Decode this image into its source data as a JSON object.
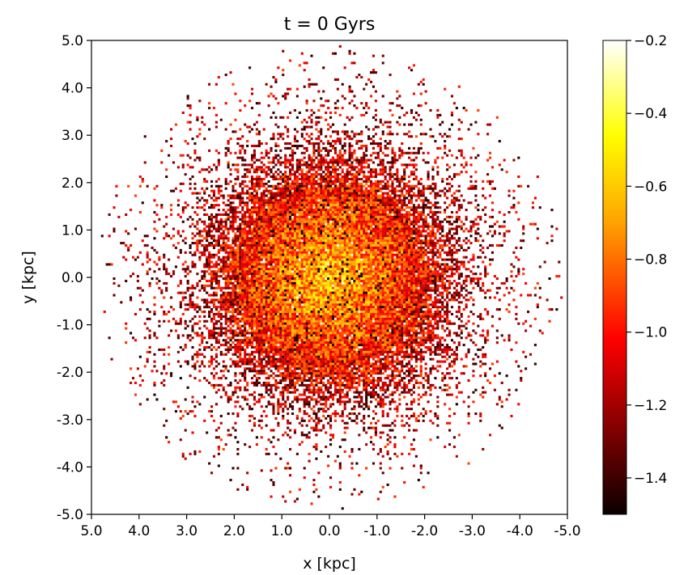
{
  "chart_data": {
    "type": "heatmap",
    "title": "t = 0 Gyrs",
    "xlabel": "x [kpc]",
    "ylabel": "y [kpc]",
    "xlim": [
      5.0,
      -5.0
    ],
    "ylim": [
      -5.0,
      5.0
    ],
    "x_inverted": true,
    "x_ticks": [
      5.0,
      4.0,
      3.0,
      2.0,
      1.0,
      0.0,
      -1.0,
      -2.0,
      -3.0,
      -4.0,
      -5.0
    ],
    "x_tick_labels": [
      "5.0",
      "4.0",
      "3.0",
      "2.0",
      "1.0",
      "0.0",
      "-1.0",
      "-2.0",
      "-3.0",
      "-4.0",
      "-5.0"
    ],
    "y_ticks": [
      5.0,
      4.0,
      3.0,
      2.0,
      1.0,
      0.0,
      -1.0,
      -2.0,
      -3.0,
      -4.0,
      -5.0
    ],
    "y_tick_labels": [
      "5.0",
      "4.0",
      "3.0",
      "2.0",
      "1.0",
      "0.0",
      "-1.0",
      "-2.0",
      "-3.0",
      "-4.0",
      "-5.0"
    ],
    "grid": false,
    "colormap": "hot",
    "colorbar": {
      "range": [
        -1.5,
        -0.2
      ],
      "ticks": [
        -0.2,
        -0.4,
        -0.6,
        -0.8,
        -1.0,
        -1.2,
        -1.4
      ],
      "tick_labels": [
        "−0.2",
        "−0.4",
        "−0.6",
        "−0.8",
        "−1.0",
        "−1.2",
        "−1.4"
      ],
      "colors": [
        "#0b0000",
        "#ff0000",
        "#ffa500",
        "#ffff00",
        "#ffffff"
      ]
    },
    "distribution": {
      "shape": "radially symmetric particle disk centered at origin",
      "center": [
        0.0,
        0.0
      ],
      "dense_core_radius_kpc": 1.9,
      "outer_extent_kpc": 4.9,
      "core_value": -0.8,
      "edge_value": -1.4
    }
  }
}
